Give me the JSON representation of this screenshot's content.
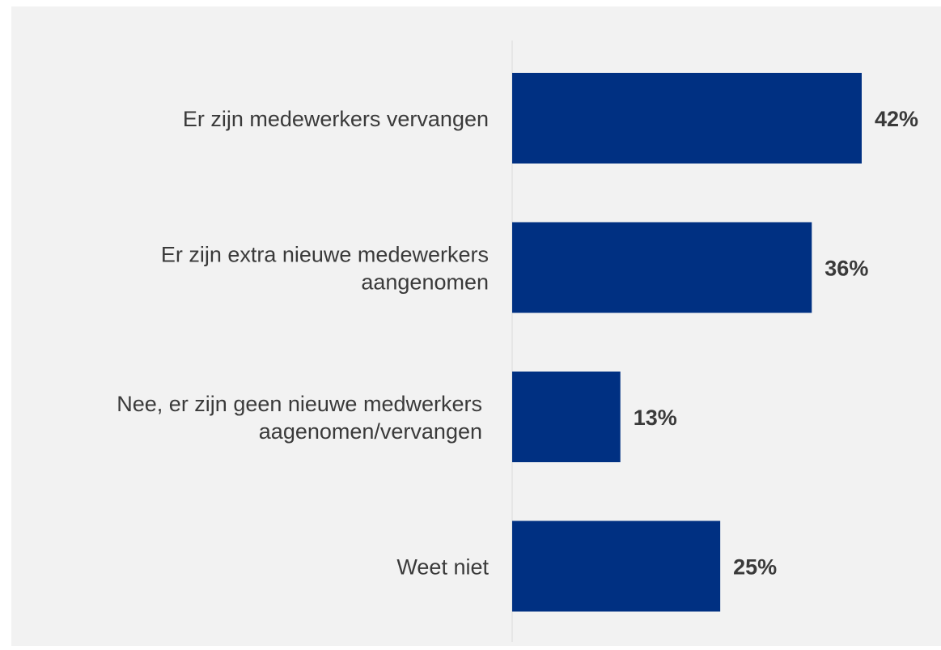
{
  "chart_data": {
    "type": "bar",
    "orientation": "horizontal",
    "categories": [
      [
        "Er zijn medewerkers vervangen"
      ],
      [
        "Er zijn extra nieuwe medewerkers",
        "aangenomen"
      ],
      [
        "Nee, er zijn geen nieuwe medwerkers",
        "aagenomen/vervangen"
      ],
      [
        "Weet niet"
      ]
    ],
    "values": [
      42,
      36,
      13,
      25
    ],
    "value_labels": [
      "42%",
      "36%",
      "13%",
      "25%"
    ],
    "unit": "%",
    "xlim": [
      0,
      50
    ],
    "bar_color": "#003082",
    "background_color": "#f2f2f2",
    "grid": false,
    "legend": "none"
  }
}
